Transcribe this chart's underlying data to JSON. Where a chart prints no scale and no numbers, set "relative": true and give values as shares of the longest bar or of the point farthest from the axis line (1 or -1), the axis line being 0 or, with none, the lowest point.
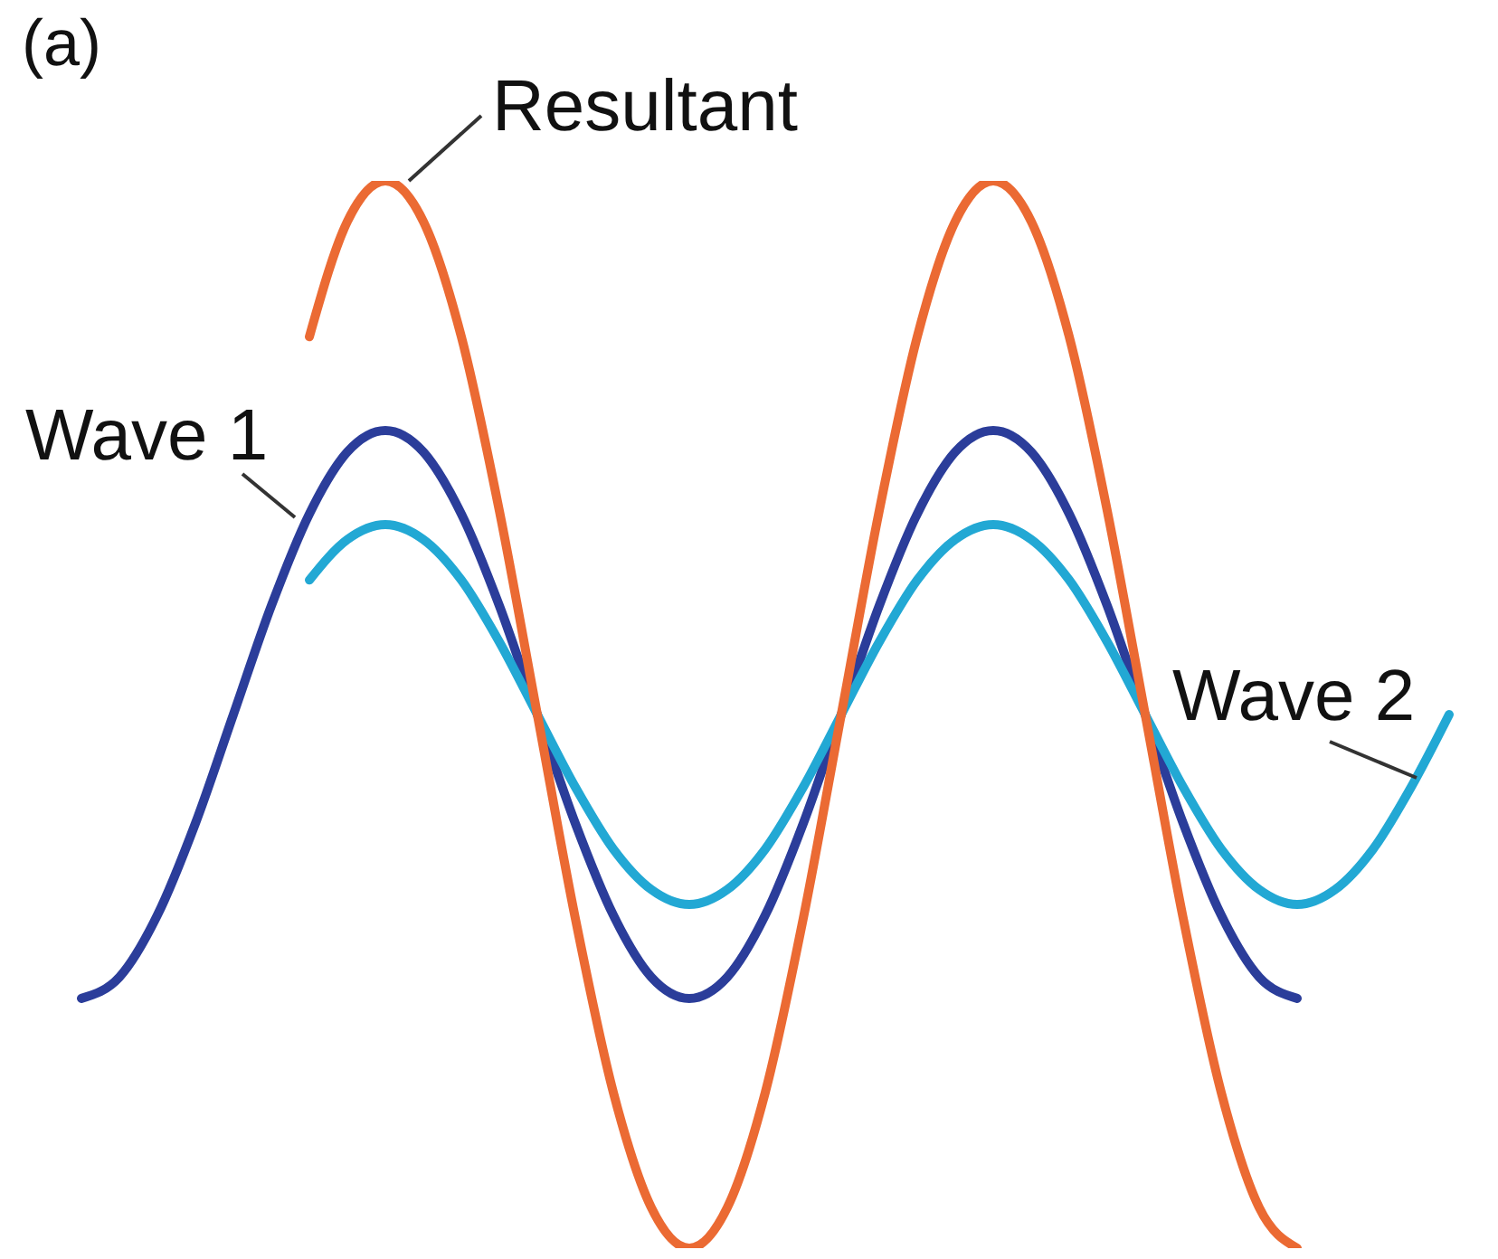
{
  "chart_data": {
    "type": "line",
    "title": "(a)",
    "relative": true,
    "marker": "none",
    "categories": [
      null,
      null,
      null,
      null,
      null,
      null,
      null,
      null,
      null,
      null,
      null,
      null,
      null,
      null,
      null,
      null,
      null,
      null,
      null,
      null,
      null,
      null,
      null,
      null,
      null,
      null,
      null,
      null,
      null,
      null,
      null,
      null,
      null,
      null,
      null,
      null,
      null
    ],
    "series": [
      {
        "name": "Wave 1",
        "color": "#2b3d9a",
        "values": [
          0.234,
          0.254,
          0.312,
          0.398,
          0.5,
          0.602,
          0.688,
          0.746,
          0.766,
          0.746,
          0.688,
          0.602,
          0.5,
          0.398,
          0.312,
          0.254,
          0.234,
          0.254,
          0.312,
          0.398,
          0.5,
          0.602,
          0.688,
          0.746,
          0.766,
          0.746,
          0.688,
          0.602,
          0.5,
          0.398,
          0.312,
          0.254,
          0.234,
          null,
          null,
          null,
          null
        ]
      },
      {
        "name": "Wave 2",
        "color": "#22a8d4",
        "values": [
          null,
          null,
          null,
          null,
          null,
          null,
          0.626,
          0.664,
          0.678,
          0.664,
          0.626,
          0.568,
          0.5,
          0.432,
          0.374,
          0.336,
          0.322,
          0.336,
          0.374,
          0.432,
          0.5,
          0.568,
          0.626,
          0.664,
          0.678,
          0.664,
          0.626,
          0.568,
          0.5,
          0.432,
          0.374,
          0.336,
          0.322,
          0.336,
          0.374,
          0.432,
          0.5
        ]
      },
      {
        "name": "Resultant",
        "color": "#eb6a33",
        "values": [
          null,
          null,
          null,
          null,
          null,
          null,
          0.854,
          0.962,
          1,
          0.962,
          0.854,
          0.691,
          0.5,
          0.309,
          0.146,
          0.038,
          0,
          0.038,
          0.146,
          0.309,
          0.5,
          0.691,
          0.854,
          0.962,
          1,
          0.962,
          0.854,
          0.691,
          0.5,
          0.309,
          0.146,
          0.038,
          0,
          null,
          null,
          null,
          null
        ]
      }
    ]
  }
}
